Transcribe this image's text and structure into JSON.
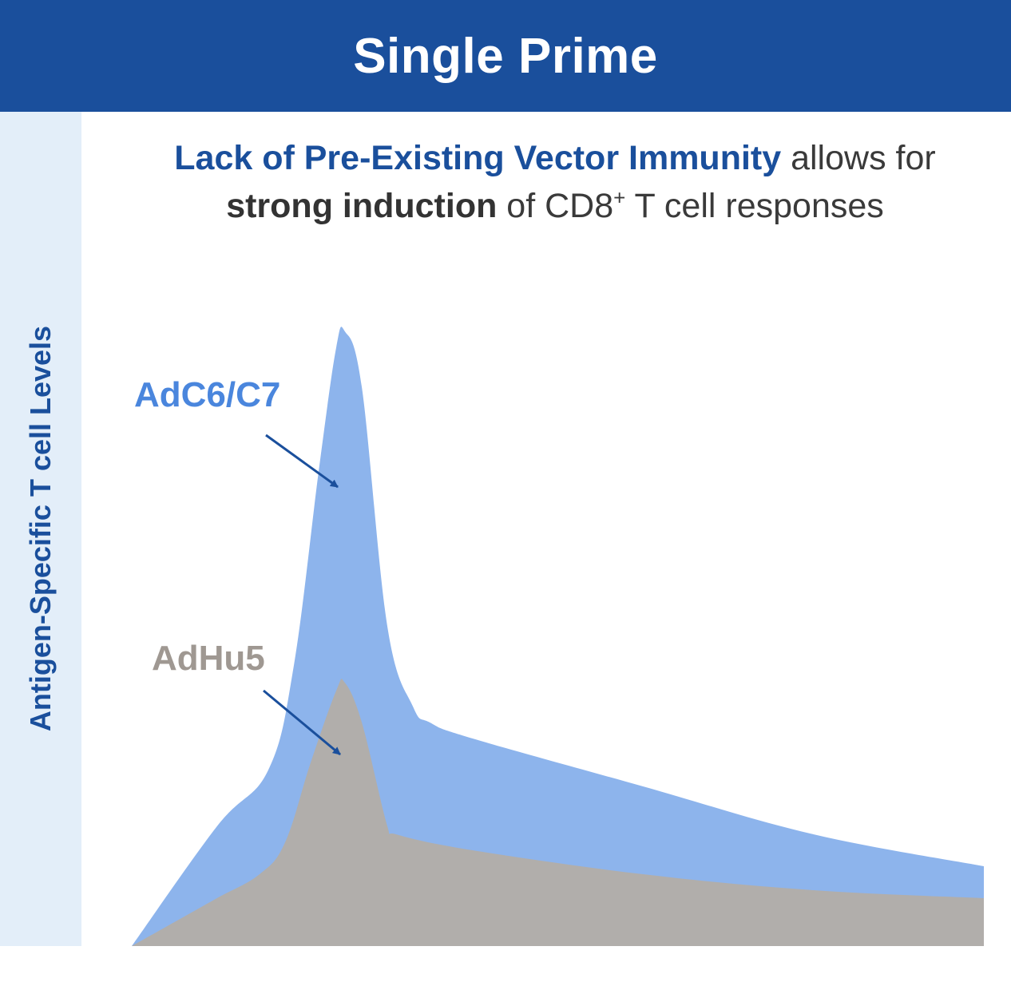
{
  "banner": {
    "title": "Single Prime"
  },
  "headline": {
    "part1_bold_blue": "Lack of Pre-Existing Vector Immunity",
    "part2": " allows for",
    "part3_bold": "strong induction",
    "part4": " of CD8",
    "part4_sup": "+",
    "part5": " T cell responses"
  },
  "colors": {
    "banner": "#1a4f9c",
    "axis_strip": "#e3eef9",
    "adc6_fill": "#8db4ec",
    "adc6_label": "#4a86dd",
    "adhu5_fill": "#b1aeab",
    "adhu5_label": "#9f9892",
    "arrow": "#1a4f9c"
  },
  "chart_data": {
    "type": "area",
    "title": "",
    "xlabel": "",
    "ylabel": "Antigen-Specific T cell Levels",
    "xlim": [
      0,
      100
    ],
    "ylim": [
      0,
      100
    ],
    "grid": false,
    "legend": "none",
    "series": [
      {
        "name": "AdC6/C7",
        "x": [
          0,
          10,
          16,
          19,
          22,
          24,
          25,
          27,
          30,
          33,
          35,
          40,
          60,
          80,
          100
        ],
        "values": [
          0,
          15,
          22,
          35,
          60,
          75,
          77,
          70,
          40,
          30,
          28,
          26,
          20,
          14,
          10
        ]
      },
      {
        "name": "AdHu5",
        "x": [
          0,
          5,
          10,
          15,
          18,
          21,
          24,
          25,
          27,
          30,
          31,
          40,
          60,
          80,
          100
        ],
        "values": [
          0,
          3,
          6,
          9,
          13,
          23,
          32,
          33,
          28,
          15,
          14,
          12,
          9,
          7,
          6
        ]
      }
    ]
  }
}
